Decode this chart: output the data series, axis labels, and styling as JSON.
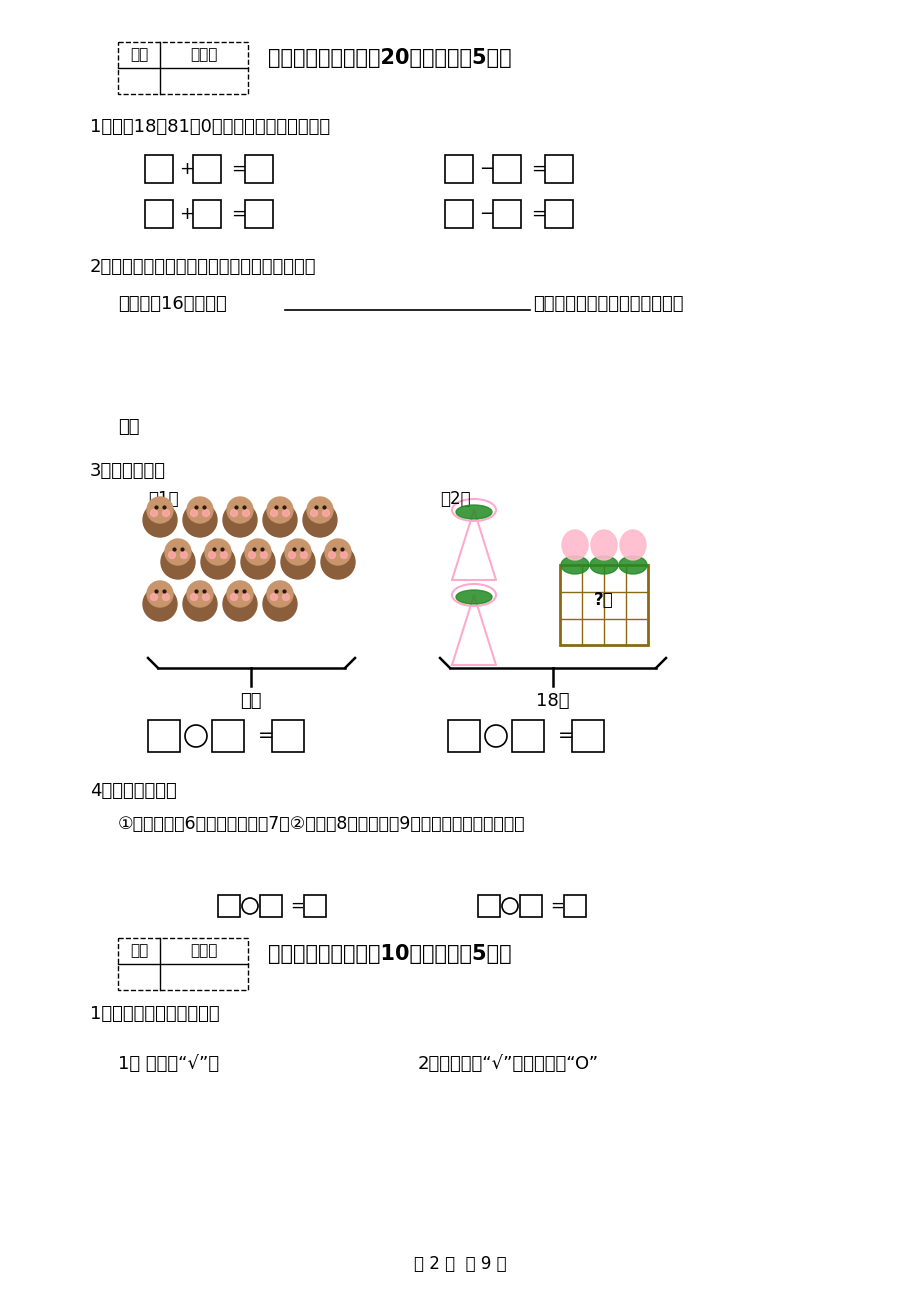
{
  "bg_color": "#ffffff",
  "text_color": "#000000",
  "page_width": 9.2,
  "page_height": 13.02,
  "section2_title": "二、我会算（本题內20分，每题　5分）",
  "q1_label": "1、根据18、81、0三个数，写出四个算式：",
  "q2_label": "2、给下面各题补上条件或问题，然后再解答？",
  "q2_text": "小巧做了16朵纸花，",
  "q2_text2": "，小巧和小亚两人相差多少朵？",
  "answer_label": "答：",
  "q3_label": "3、看图列式。",
  "q3_sub1": "（1）",
  "q3_sub2": "（2）",
  "q3_label1": "？只",
  "q3_label2": "18个",
  "q4_label": "4、列式算一算。",
  "q4_text": "①一个加数是6，另一个加数是7，②减数是8，被减数是9，差是多少？和是多少？",
  "section3_title": "三、我会比（本题內10分，每题　5分）",
  "q5_label": "1、细心比，你一定能对！",
  "q5_sub1": "1、 重的画“√”。",
  "q5_sub2": "2、最高的画“√”，最矮的画“O”",
  "page_footer": "第 2 页  共 9 页",
  "defen": "得分",
  "pinjuanren": "评卷人",
  "monkey_body_color": "#8B5E3C",
  "monkey_face_color": "#C8956C",
  "monkey_cheek_color": "#ffaaaa",
  "basket_color": "#8B6914",
  "leaf_color": "#228B22",
  "icecream_color": "#ffbbcc",
  "cone_color": "#ffaacc"
}
